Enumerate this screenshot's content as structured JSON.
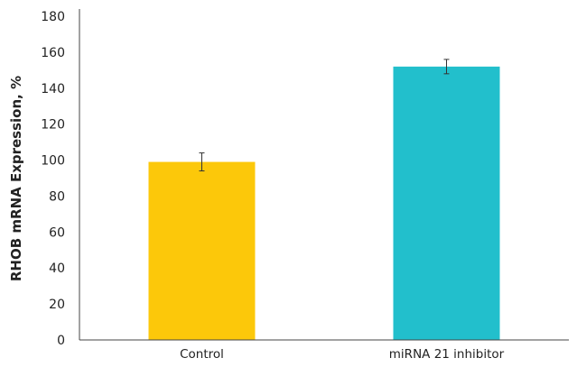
{
  "chart_data": {
    "type": "bar",
    "categories": [
      "Control",
      "miRNA 21 inhibitor"
    ],
    "values": [
      99,
      152
    ],
    "errors": [
      5,
      4
    ],
    "title": "",
    "xlabel": "",
    "ylabel": "RHOB mRNA Expression, %",
    "ylim": [
      0,
      180
    ],
    "yticks": [
      "0",
      "20",
      "40",
      "60",
      "80",
      "100",
      "120",
      "140",
      "160",
      "180"
    ],
    "colors": [
      "#fcc80a",
      "#22bfcc"
    ],
    "grid": false,
    "legend": "none"
  }
}
